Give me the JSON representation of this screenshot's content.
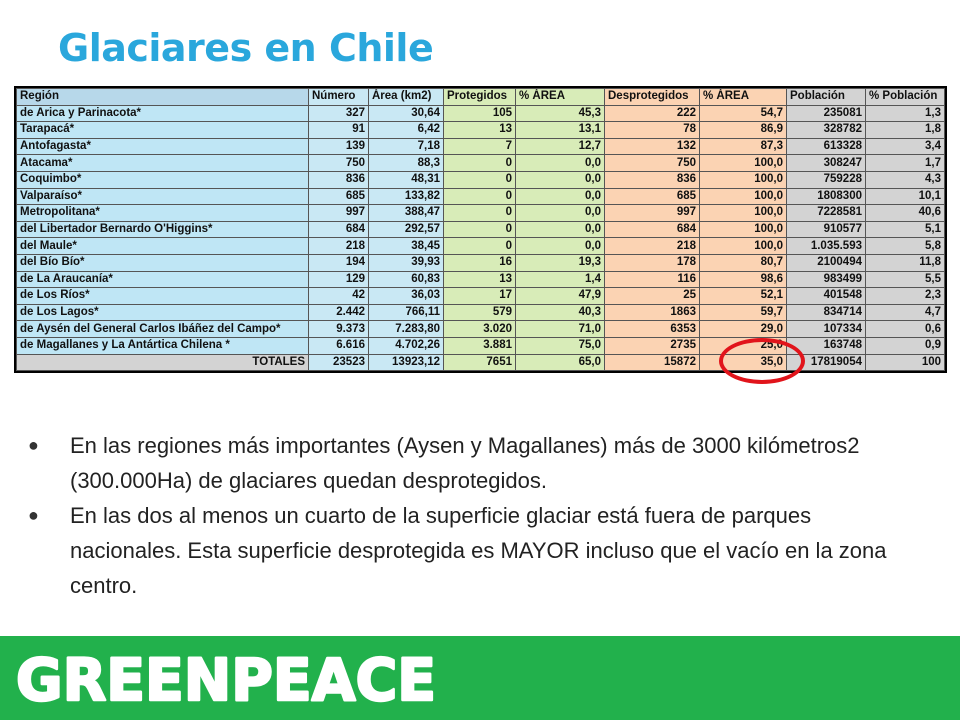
{
  "title": "Glaciares en Chile",
  "table": {
    "headers": [
      "Región",
      "Número",
      "Área (km2)",
      "Protegidos",
      "% ÁREA",
      "Desprotegidos",
      "% ÁREA",
      "Población",
      "% Población"
    ],
    "rows": [
      [
        "de Arica y Parinacota*",
        "327",
        "30,64",
        "105",
        "45,3",
        "222",
        "54,7",
        "235081",
        "1,3"
      ],
      [
        "Tarapacá*",
        "91",
        "6,42",
        "13",
        "13,1",
        "78",
        "86,9",
        "328782",
        "1,8"
      ],
      [
        "Antofagasta*",
        "139",
        "7,18",
        "7",
        "12,7",
        "132",
        "87,3",
        "613328",
        "3,4"
      ],
      [
        "Atacama*",
        "750",
        "88,3",
        "0",
        "0,0",
        "750",
        "100,0",
        "308247",
        "1,7"
      ],
      [
        "Coquimbo*",
        "836",
        "48,31",
        "0",
        "0,0",
        "836",
        "100,0",
        "759228",
        "4,3"
      ],
      [
        "Valparaíso*",
        "685",
        "133,82",
        "0",
        "0,0",
        "685",
        "100,0",
        "1808300",
        "10,1"
      ],
      [
        "Metropolitana*",
        "997",
        "388,47",
        "0",
        "0,0",
        "997",
        "100,0",
        "7228581",
        "40,6"
      ],
      [
        "del Libertador Bernardo O'Higgins*",
        "684",
        "292,57",
        "0",
        "0,0",
        "684",
        "100,0",
        "910577",
        "5,1"
      ],
      [
        "del Maule*",
        "218",
        "38,45",
        "0",
        "0,0",
        "218",
        "100,0",
        "1.035.593",
        "5,8"
      ],
      [
        "del Bío Bío*",
        "194",
        "39,93",
        "16",
        "19,3",
        "178",
        "80,7",
        "2100494",
        "11,8"
      ],
      [
        "de La Araucanía*",
        "129",
        "60,83",
        "13",
        "1,4",
        "116",
        "98,6",
        "983499",
        "5,5"
      ],
      [
        "de Los Ríos*",
        "42",
        "36,03",
        "17",
        "47,9",
        "25",
        "52,1",
        "401548",
        "2,3"
      ],
      [
        "de Los Lagos*",
        "2.442",
        "766,11",
        "579",
        "40,3",
        "1863",
        "59,7",
        "834714",
        "4,7"
      ],
      [
        "de Aysén del General Carlos Ibáñez del Campo*",
        "9.373",
        "7.283,80",
        "3.020",
        "71,0",
        "6353",
        "29,0",
        "107334",
        "0,6"
      ],
      [
        "de Magallanes y La Antártica Chilena *",
        "6.616",
        "4.702,26",
        "3.881",
        "75,0",
        "2735",
        "25,0",
        "163748",
        "0,9"
      ]
    ],
    "totals": [
      "TOTALES",
      "23523",
      "13923,12",
      "7651",
      "65,0",
      "15872",
      "35,0",
      "17819054",
      "100"
    ]
  },
  "bullets": [
    "En las regiones más importantes (Aysen y Magallanes) más de 3000 kilómetros2 (300.000Ha) de glaciares quedan desprotegidos.",
    "En las dos al menos un cuarto de la superficie glaciar está fuera de parques nacionales. Esta superficie desprotegida es MAYOR incluso que el vacío en la zona centro."
  ],
  "footer": {
    "logo_text": "GREENPEACE",
    "color": "#22b14c"
  },
  "colors": {
    "title": "#2aa7dc",
    "highlight_circle": "#e1141b"
  }
}
